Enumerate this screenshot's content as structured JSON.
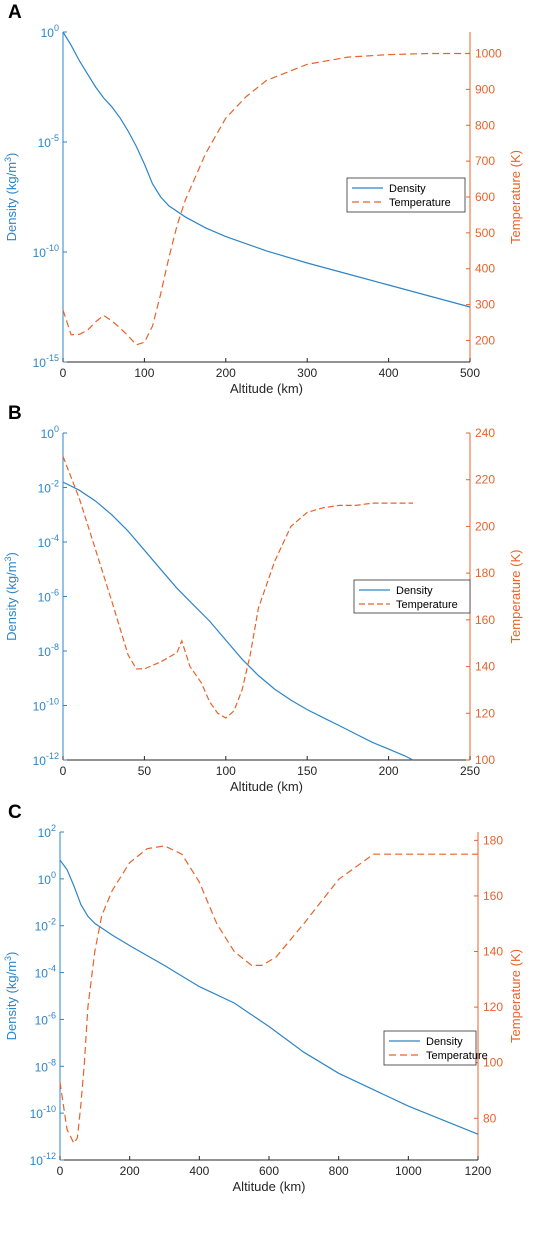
{
  "colors": {
    "density": "#2e85c8",
    "temperature": "#e8632a",
    "axis": "#262626"
  },
  "chart_data": [
    {
      "type": "line",
      "panel_label": "A",
      "xlabel": "Altitude (km)",
      "ylabel_left": "Density (kg/m³)",
      "ylabel_right": "Temperature (K)",
      "xlim": [
        0,
        500
      ],
      "xticks": [
        "0",
        "100",
        "200",
        "300",
        "400",
        "500"
      ],
      "y_left_scale": "log",
      "y_left_lim_exp": [
        -15,
        0
      ],
      "y_left_ticks": [
        {
          "base": "10",
          "exp": "0"
        },
        {
          "base": "10",
          "exp": "-5"
        },
        {
          "base": "10",
          "exp": "-10"
        },
        {
          "base": "10",
          "exp": "-15"
        }
      ],
      "y_right_lim": [
        140,
        1060
      ],
      "y_right_ticks": [
        "200",
        "300",
        "400",
        "500",
        "600",
        "700",
        "800",
        "900",
        "1000"
      ],
      "legend_position": "right",
      "legend_style": "dash-wide",
      "series": [
        {
          "name": "Density",
          "axis": "left",
          "x": [
            0,
            10,
            20,
            30,
            40,
            50,
            60,
            70,
            80,
            90,
            100,
            110,
            120,
            130,
            150,
            175,
            200,
            250,
            300,
            350,
            400,
            450,
            500
          ],
          "log10_y": [
            0,
            -0.6,
            -1.3,
            -1.9,
            -2.5,
            -3.0,
            -3.4,
            -3.9,
            -4.5,
            -5.2,
            -6.0,
            -6.9,
            -7.5,
            -7.9,
            -8.4,
            -8.9,
            -9.3,
            -9.95,
            -10.5,
            -11.0,
            -11.5,
            -12.0,
            -12.5
          ]
        },
        {
          "name": "Temperature",
          "axis": "right",
          "x": [
            0,
            10,
            20,
            30,
            40,
            50,
            60,
            70,
            80,
            90,
            100,
            110,
            120,
            130,
            140,
            150,
            175,
            200,
            225,
            250,
            300,
            350,
            400,
            450,
            500
          ],
          "y": [
            285,
            216,
            217,
            228,
            252,
            270,
            255,
            235,
            213,
            188,
            195,
            240,
            330,
            430,
            520,
            590,
            720,
            820,
            880,
            925,
            970,
            990,
            997,
            1000,
            1000
          ]
        }
      ]
    },
    {
      "type": "line",
      "panel_label": "B",
      "xlabel": "Altitude (km)",
      "ylabel_left": "Density (kg/m³)",
      "ylabel_right": "Temperature (K)",
      "xlim": [
        0,
        250
      ],
      "xticks": [
        "0",
        "50",
        "100",
        "150",
        "200",
        "250"
      ],
      "y_left_scale": "log",
      "y_left_lim_exp": [
        -12,
        0
      ],
      "y_left_ticks": [
        {
          "base": "10",
          "exp": "0"
        },
        {
          "base": "10",
          "exp": "-2"
        },
        {
          "base": "10",
          "exp": "-4"
        },
        {
          "base": "10",
          "exp": "-6"
        },
        {
          "base": "10",
          "exp": "-8"
        },
        {
          "base": "10",
          "exp": "-10"
        },
        {
          "base": "10",
          "exp": "-12"
        }
      ],
      "y_right_lim": [
        100,
        240
      ],
      "y_right_ticks": [
        "100",
        "120",
        "140",
        "160",
        "180",
        "200",
        "220",
        "240"
      ],
      "legend_position": "right",
      "legend_style": "dash-fine",
      "series": [
        {
          "name": "Density",
          "axis": "left",
          "x": [
            0,
            10,
            20,
            30,
            40,
            50,
            60,
            70,
            80,
            90,
            100,
            110,
            120,
            130,
            140,
            150,
            160,
            170,
            180,
            190,
            200,
            210,
            215
          ],
          "log10_y": [
            -1.8,
            -2.1,
            -2.5,
            -3.0,
            -3.6,
            -4.3,
            -5.0,
            -5.7,
            -6.3,
            -6.9,
            -7.6,
            -8.3,
            -8.9,
            -9.4,
            -9.8,
            -10.15,
            -10.45,
            -10.75,
            -11.05,
            -11.35,
            -11.6,
            -11.85,
            -12.0
          ]
        },
        {
          "name": "Temperature",
          "axis": "right",
          "x": [
            0,
            10,
            20,
            30,
            40,
            45,
            50,
            60,
            70,
            73,
            78,
            85,
            90,
            95,
            100,
            105,
            110,
            115,
            120,
            130,
            140,
            150,
            160,
            170,
            180,
            190,
            200,
            210,
            215
          ],
          "y": [
            230,
            212,
            190,
            168,
            145,
            139,
            139,
            142,
            146,
            151,
            140,
            133,
            125,
            120,
            118,
            121,
            130,
            145,
            165,
            185,
            200,
            206,
            208,
            209,
            209,
            210,
            210,
            210,
            210
          ]
        }
      ]
    },
    {
      "type": "line",
      "panel_label": "C",
      "xlabel": "Altitude (km)",
      "ylabel_left": "Density (kg/m³)",
      "ylabel_right": "Temperature (K)",
      "xlim": [
        0,
        1200
      ],
      "xticks": [
        "0",
        "200",
        "400",
        "600",
        "800",
        "1000",
        "1200"
      ],
      "y_left_scale": "log",
      "y_left_lim_exp": [
        -12,
        2
      ],
      "y_left_ticks": [
        {
          "base": "10",
          "exp": "2"
        },
        {
          "base": "10",
          "exp": "0"
        },
        {
          "base": "10",
          "exp": "-2"
        },
        {
          "base": "10",
          "exp": "-4"
        },
        {
          "base": "10",
          "exp": "-6"
        },
        {
          "base": "10",
          "exp": "-8"
        },
        {
          "base": "10",
          "exp": "-10"
        },
        {
          "base": "10",
          "exp": "-12"
        }
      ],
      "y_right_lim": [
        65,
        183
      ],
      "y_right_ticks": [
        "80",
        "100",
        "120",
        "140",
        "160",
        "180"
      ],
      "legend_position": "right",
      "legend_style": "dash-wide",
      "series": [
        {
          "name": "Density",
          "axis": "left",
          "x": [
            0,
            20,
            40,
            60,
            80,
            100,
            150,
            200,
            300,
            400,
            500,
            600,
            700,
            800,
            900,
            1000,
            1100,
            1200
          ],
          "log10_y": [
            0.8,
            0.4,
            -0.3,
            -1.1,
            -1.6,
            -1.9,
            -2.4,
            -2.85,
            -3.7,
            -4.6,
            -5.3,
            -6.3,
            -7.4,
            -8.3,
            -9.0,
            -9.7,
            -10.3,
            -10.9
          ]
        },
        {
          "name": "Temperature",
          "axis": "right",
          "x": [
            0,
            20,
            40,
            50,
            60,
            70,
            80,
            100,
            120,
            150,
            200,
            250,
            300,
            350,
            400,
            450,
            500,
            550,
            580,
            620,
            700,
            800,
            900,
            1000,
            1100,
            1200
          ],
          "y": [
            93,
            76,
            71,
            73,
            85,
            100,
            120,
            140,
            153,
            162,
            172,
            177,
            178,
            175,
            165,
            150,
            140,
            135,
            135,
            138,
            150,
            166,
            175,
            175,
            175,
            175
          ]
        }
      ]
    }
  ]
}
